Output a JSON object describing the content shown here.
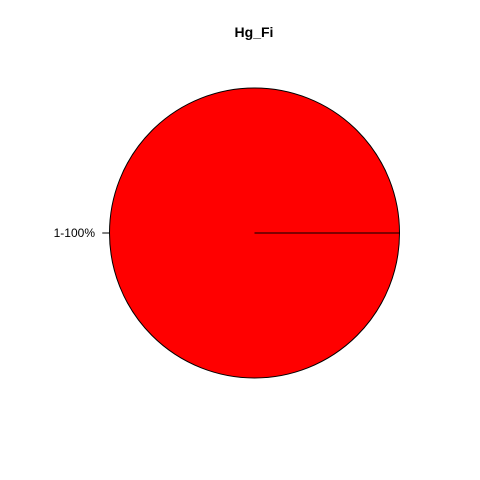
{
  "chart_data": {
    "type": "pie",
    "title": "Hg_Fi",
    "slices": [
      {
        "label": "1-100%",
        "value": 100,
        "color": "#ff0000"
      }
    ]
  }
}
